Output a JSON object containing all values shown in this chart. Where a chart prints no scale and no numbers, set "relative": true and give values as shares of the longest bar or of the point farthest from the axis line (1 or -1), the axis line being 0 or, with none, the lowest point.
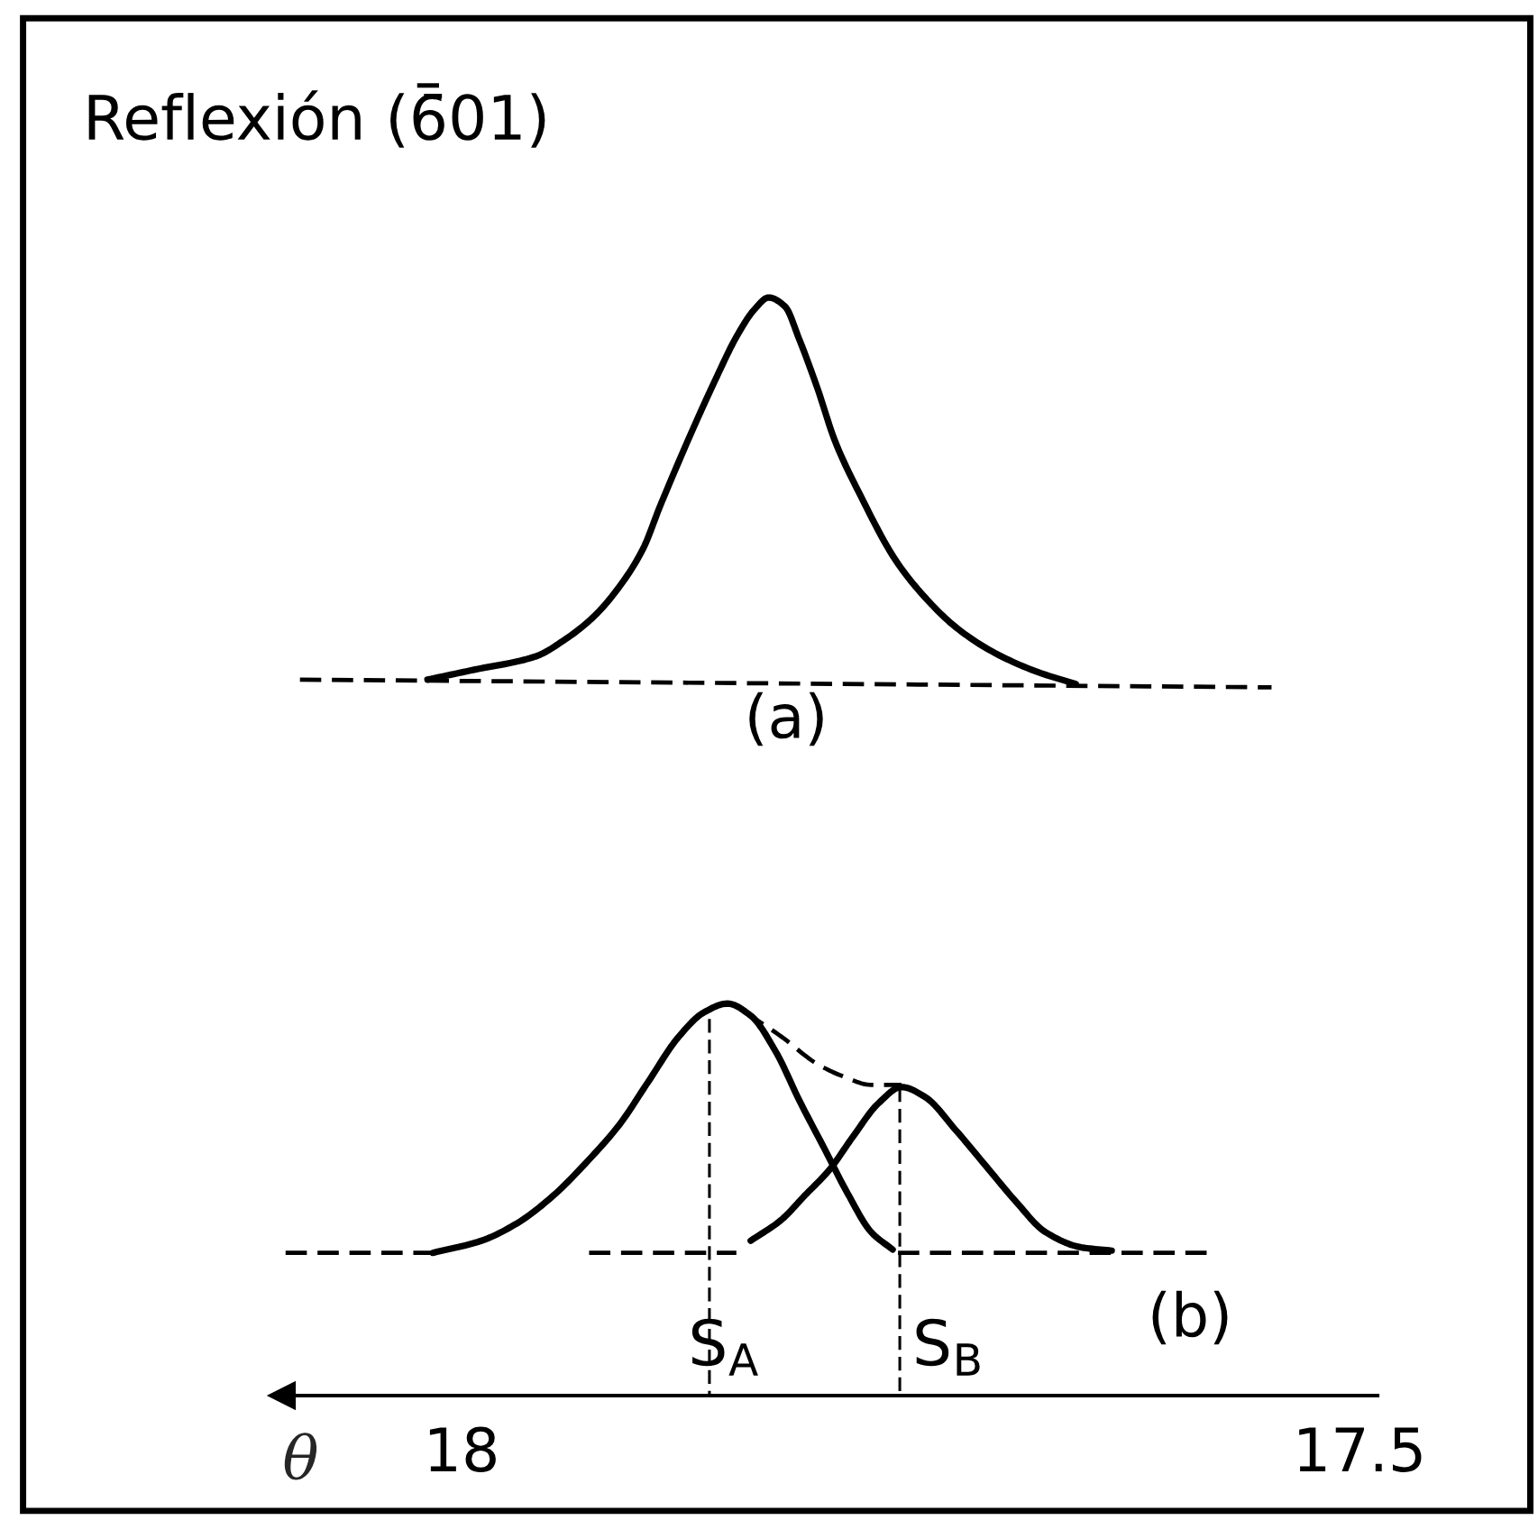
{
  "chart_data": {
    "type": "line",
    "title": "Reflexión (6̄01)",
    "xlabel": "θ",
    "relative": true,
    "xlim": [
      18.1,
      17.49
    ],
    "xticks": [
      18,
      {
        "value": 17.5,
        "label": "17.5"
      }
    ],
    "tick_labels": "x",
    "series": [
      {
        "color": "#000000",
        "line_style": "dashed",
        "x": [
          18.09,
          17.549
        ],
        "values": [
          0.652,
          0.645
        ]
      },
      {
        "color": "#000000",
        "line_style": "solid",
        "x": [
          18.019,
          17.993,
          17.959,
          17.942,
          17.926,
          17.912,
          17.899,
          17.889,
          17.859,
          17.846,
          17.837,
          17.829,
          17.82,
          17.812,
          17.802,
          17.792,
          17.778,
          17.758,
          17.742,
          17.725,
          17.705,
          17.681,
          17.658
        ],
        "values": [
          0.652,
          0.661,
          0.673,
          0.689,
          0.71,
          0.737,
          0.771,
          0.812,
          0.924,
          0.967,
          0.989,
          1.0,
          0.992,
          0.962,
          0.918,
          0.869,
          0.82,
          0.76,
          0.727,
          0.7,
          0.678,
          0.66,
          0.648
        ]
      },
      {
        "color": "#000000",
        "line_style": "dashed",
        "x": [
          18.098,
          18.016
        ],
        "values": [
          0.13,
          0.13
        ]
      },
      {
        "color": "#000000",
        "line_style": "dashed",
        "x": [
          17.929,
          17.847
        ],
        "values": [
          0.13,
          0.13
        ]
      },
      {
        "color": "#000000",
        "line_style": "dashed",
        "x": [
          17.757,
          17.583
        ],
        "values": [
          0.13,
          0.13
        ]
      },
      {
        "color": "#000000",
        "line_style": "solid",
        "x": [
          18.016,
          17.989,
          17.969,
          17.949,
          17.929,
          17.912,
          17.896,
          17.879,
          17.865,
          17.852,
          17.839,
          17.825,
          17.812,
          17.798,
          17.785,
          17.772,
          17.76
        ],
        "values": [
          0.13,
          0.141,
          0.157,
          0.182,
          0.215,
          0.247,
          0.286,
          0.327,
          0.349,
          0.357,
          0.346,
          0.313,
          0.269,
          0.225,
          0.184,
          0.149,
          0.133
        ]
      },
      {
        "color": "#000000",
        "line_style": "solid",
        "x": [
          17.839,
          17.822,
          17.809,
          17.795,
          17.782,
          17.768,
          17.755,
          17.742,
          17.725,
          17.708,
          17.691,
          17.675,
          17.655,
          17.638
        ],
        "values": [
          0.141,
          0.16,
          0.182,
          0.206,
          0.236,
          0.266,
          0.281,
          0.272,
          0.242,
          0.209,
          0.176,
          0.149,
          0.135,
          0.132
        ]
      },
      {
        "color": "#000000",
        "line_style": "dashed",
        "x": [
          17.842,
          17.822,
          17.802,
          17.788,
          17.772,
          17.755
        ],
        "values": [
          0.349,
          0.327,
          0.302,
          0.291,
          0.283,
          0.283
        ]
      },
      {
        "color": "#000000",
        "line_style": "dashed",
        "x": [
          17.862,
          17.862
        ],
        "values": [
          0.343,
          0
        ]
      },
      {
        "color": "#000000",
        "line_style": "dashed",
        "x": [
          17.756,
          17.756
        ],
        "values": [
          0.28,
          0
        ]
      }
    ],
    "annotations": [
      "(a)",
      {
        "text": "S$_{A}$",
        "x": 17.862,
        "y": 0.043
      },
      {
        "text": "S$_{B}$",
        "x": 17.756,
        "y": 0.043
      },
      "(b)"
    ]
  }
}
